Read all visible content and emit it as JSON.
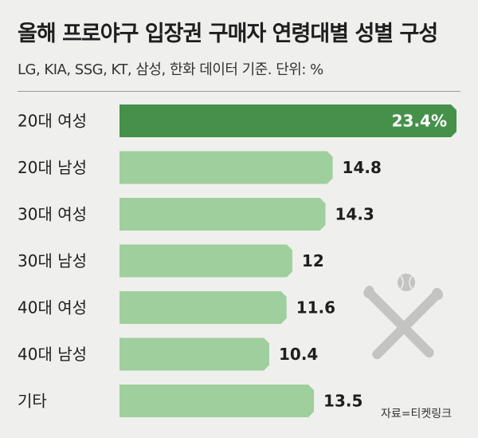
{
  "title": "올해 프로야구 입장권 구매자 연령대별 성별 구성",
  "subtitle": "LG, KIA, SSG, KT, 삼성, 한화 데이터 기준. 단위: %",
  "source": "자료=티켓링크",
  "colors": {
    "highlight": "#45914a",
    "bar": "#9fcf9c",
    "background": "#efefed"
  },
  "icons": [
    "baseball-bats-icon",
    "baseball-icon"
  ],
  "chart_data": {
    "type": "bar",
    "orientation": "horizontal",
    "categories": [
      "20대 여성",
      "20대 남성",
      "30대 여성",
      "30대 남성",
      "40대 여성",
      "40대 남성",
      "기타"
    ],
    "values": [
      23.4,
      14.8,
      14.3,
      12,
      11.6,
      10.4,
      13.5
    ],
    "value_labels": [
      "23.4%",
      "14.8",
      "14.3",
      "12",
      "11.6",
      "10.4",
      "13.5"
    ],
    "highlight_index": 0,
    "title": "올해 프로야구 입장권 구매자 연령대별 성별 구성",
    "xlabel": "",
    "ylabel": "",
    "unit": "%",
    "xlim": [
      0,
      23.4
    ],
    "grid": false,
    "legend": "none"
  }
}
